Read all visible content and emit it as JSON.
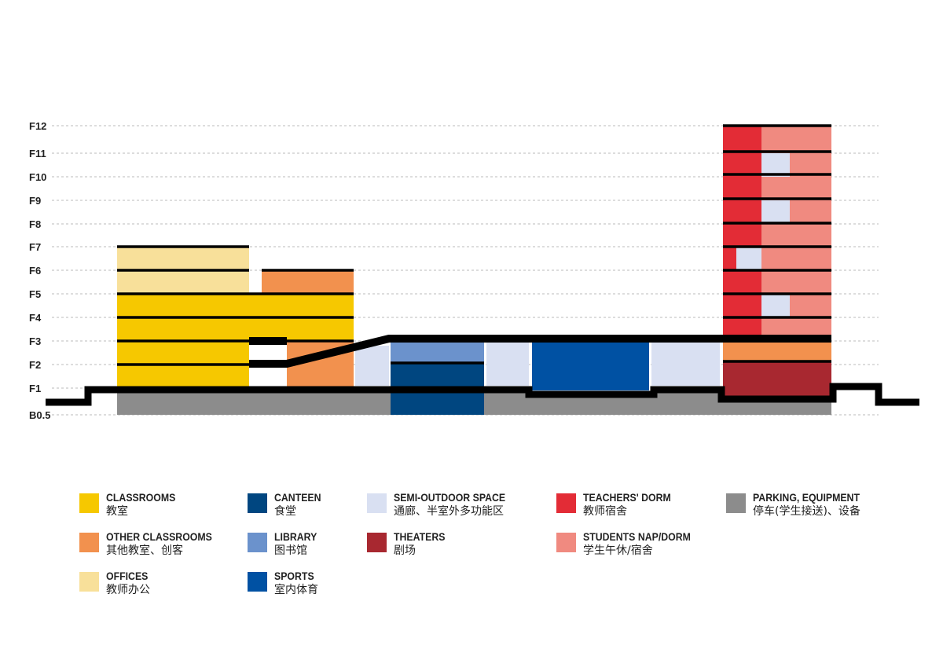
{
  "floors": [
    "F12",
    "F11",
    "F10",
    "F9",
    "F8",
    "F7",
    "F6",
    "F5",
    "F4",
    "F3",
    "F2",
    "F1",
    "B0.5"
  ],
  "colors": {
    "classrooms": "#f6c800",
    "other_classrooms": "#f2914e",
    "offices": "#f8e09a",
    "canteen": "#004680",
    "library": "#6b92cc",
    "sports": "#0051a3",
    "semi_outdoor": "#d9e0f2",
    "theaters": "#a82830",
    "teachers_dorm": "#e32c36",
    "students_dorm": "#f08a80",
    "parking": "#8c8c8c",
    "slab": "#000000"
  },
  "legend": [
    {
      "key": "classrooms",
      "en": "CLASSROOMS",
      "cn": "教室",
      "color": "#f6c800"
    },
    {
      "key": "other_classrooms",
      "en": "OTHER CLASSROOMS",
      "cn": "其他教室、创客",
      "color": "#f2914e"
    },
    {
      "key": "offices",
      "en": "OFFICES",
      "cn": "教师办公",
      "color": "#f8e09a"
    },
    {
      "key": "canteen",
      "en": "CANTEEN",
      "cn": "食堂",
      "color": "#004680"
    },
    {
      "key": "library",
      "en": "LIBRARY",
      "cn": "图书馆",
      "color": "#6b92cc"
    },
    {
      "key": "sports",
      "en": "SPORTS",
      "cn": "室内体育",
      "color": "#0051a3"
    },
    {
      "key": "semi_outdoor",
      "en": "SEMI-OUTDOOR SPACE",
      "cn": "通廊、半室外多功能区",
      "color": "#d9e0f2"
    },
    {
      "key": "theaters",
      "en": "THEATERS",
      "cn": "剧场",
      "color": "#a82830"
    },
    {
      "key": "teachers_dorm",
      "en": "TEACHERS' DORM",
      "cn": "教师宿舍",
      "color": "#e32c36"
    },
    {
      "key": "students_dorm",
      "en": "STUDENTS NAP/DORM",
      "cn": "学生午休/宿舍",
      "color": "#f08a80"
    },
    {
      "key": "parking",
      "en": "PARKING, EQUIPMENT",
      "cn": "停车(学生接送)、设备",
      "color": "#8c8c8c"
    }
  ]
}
